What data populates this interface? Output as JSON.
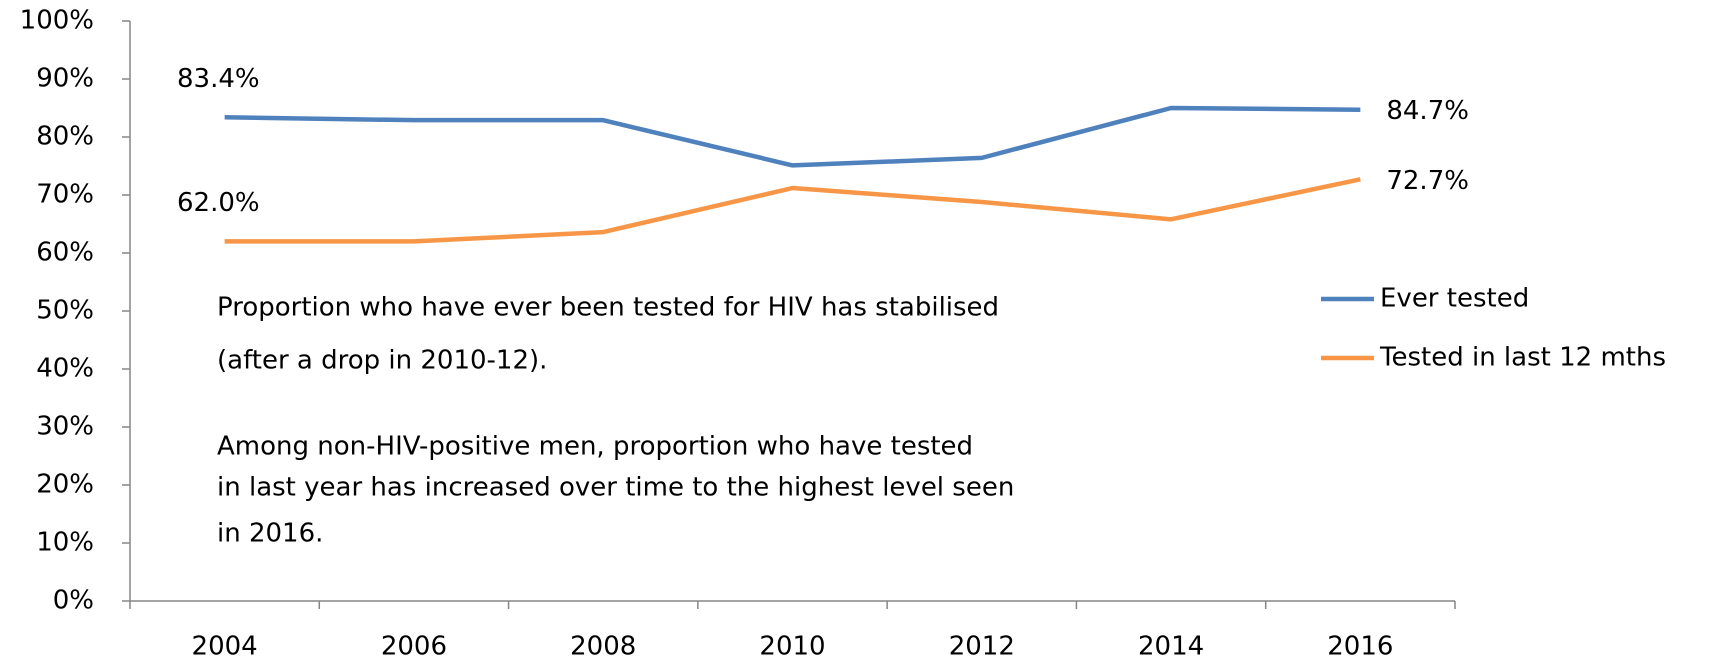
{
  "chart_data": {
    "type": "line",
    "categories": [
      "2004",
      "2006",
      "2008",
      "2010",
      "2012",
      "2014",
      "2016"
    ],
    "series": [
      {
        "name": "Ever tested",
        "color": "#4f81bd",
        "values": [
          83.4,
          82.9,
          82.9,
          75.1,
          76.4,
          85.0,
          84.7
        ],
        "value_labels": [
          "83.4%",
          null,
          null,
          null,
          null,
          null,
          "84.7%"
        ]
      },
      {
        "name": "Tested in last 12 mths",
        "color": "#f79646",
        "values": [
          62.0,
          62.0,
          63.6,
          71.2,
          68.8,
          65.8,
          72.7
        ],
        "value_labels": [
          "62.0%",
          null,
          null,
          null,
          null,
          null,
          "72.7%"
        ]
      }
    ],
    "ylim": [
      0,
      100
    ],
    "yticks": [
      {
        "value": 0,
        "label": "0%"
      },
      {
        "value": 10,
        "label": "10%"
      },
      {
        "value": 20,
        "label": "20%"
      },
      {
        "value": 30,
        "label": "30%"
      },
      {
        "value": 40,
        "label": "40%"
      },
      {
        "value": 50,
        "label": "50%"
      },
      {
        "value": 60,
        "label": "60%"
      },
      {
        "value": 70,
        "label": "70%"
      },
      {
        "value": 80,
        "label": "80%"
      },
      {
        "value": 90,
        "label": "90%"
      },
      {
        "value": 100,
        "label": "100%"
      }
    ],
    "grid": false,
    "legend": "right",
    "annotations": [
      "Proportion who have ever been tested for HIV has stabilised",
      "(after a drop in 2010-12).",
      "Among non-HIV-positive men, proportion who have tested",
      "in last year has increased over time to the highest level seen",
      "in 2016."
    ]
  }
}
